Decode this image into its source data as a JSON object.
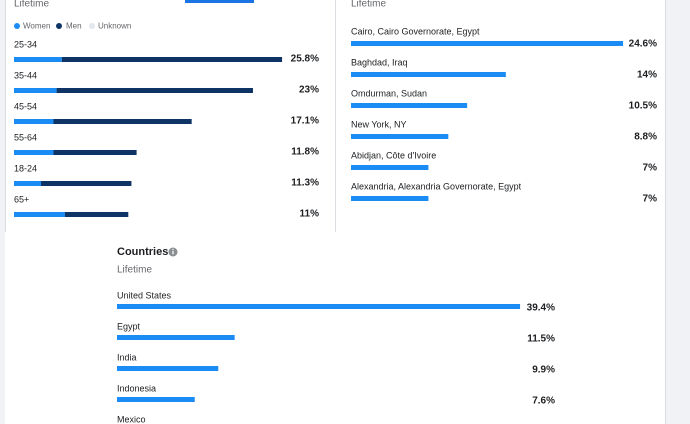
{
  "age_gender": {
    "subtitle": "Lifetime",
    "legend": [
      {
        "name": "Women",
        "color": "#1b8cf5"
      },
      {
        "name": "Men",
        "color": "#0d3465"
      },
      {
        "name": "Unknown",
        "color": "#e3e8ef"
      }
    ],
    "rows": [
      {
        "label": "25-34",
        "women": 4.6,
        "men": 21.2,
        "total": 25.8,
        "total_label": "25.8%"
      },
      {
        "label": "35-44",
        "women": 4.1,
        "men": 18.9,
        "total": 23,
        "total_label": "23%"
      },
      {
        "label": "45-54",
        "women": 3.8,
        "men": 13.3,
        "total": 17.1,
        "total_label": "17.1%"
      },
      {
        "label": "55-64",
        "women": 3.8,
        "men": 8.0,
        "total": 11.8,
        "total_label": "11.8%"
      },
      {
        "label": "18-24",
        "women": 2.6,
        "men": 8.7,
        "total": 11.3,
        "total_label": "11.3%"
      },
      {
        "label": "65+",
        "women": 4.9,
        "men": 6.1,
        "total": 11,
        "total_label": "11%"
      }
    ]
  },
  "cities": {
    "subtitle": "Lifetime",
    "color": "#1b8cf5",
    "rows": [
      {
        "label": "Cairo, Cairo Governorate, Egypt",
        "value": 24.6,
        "value_label": "24.6%"
      },
      {
        "label": "Baghdad, Iraq",
        "value": 14,
        "value_label": "14%"
      },
      {
        "label": "Omdurman, Sudan",
        "value": 10.5,
        "value_label": "10.5%"
      },
      {
        "label": "New York, NY",
        "value": 8.8,
        "value_label": "8.8%"
      },
      {
        "label": "Abidjan, Côte d'Ivoire",
        "value": 7,
        "value_label": "7%"
      },
      {
        "label": "Alexandria, Alexandria Governorate, Egypt",
        "value": 7,
        "value_label": "7%"
      }
    ]
  },
  "countries": {
    "title": "Countries",
    "subtitle": "Lifetime",
    "color": "#1b8cf5",
    "rows": [
      {
        "label": "United States",
        "value": 39.4,
        "value_label": "39.4%"
      },
      {
        "label": "Egypt",
        "value": 11.5,
        "value_label": "11.5%"
      },
      {
        "label": "India",
        "value": 9.9,
        "value_label": "9.9%"
      },
      {
        "label": "Indonesia",
        "value": 7.6,
        "value_label": "7.6%"
      },
      {
        "label": "Mexico",
        "value": null,
        "value_label": null
      }
    ]
  }
}
